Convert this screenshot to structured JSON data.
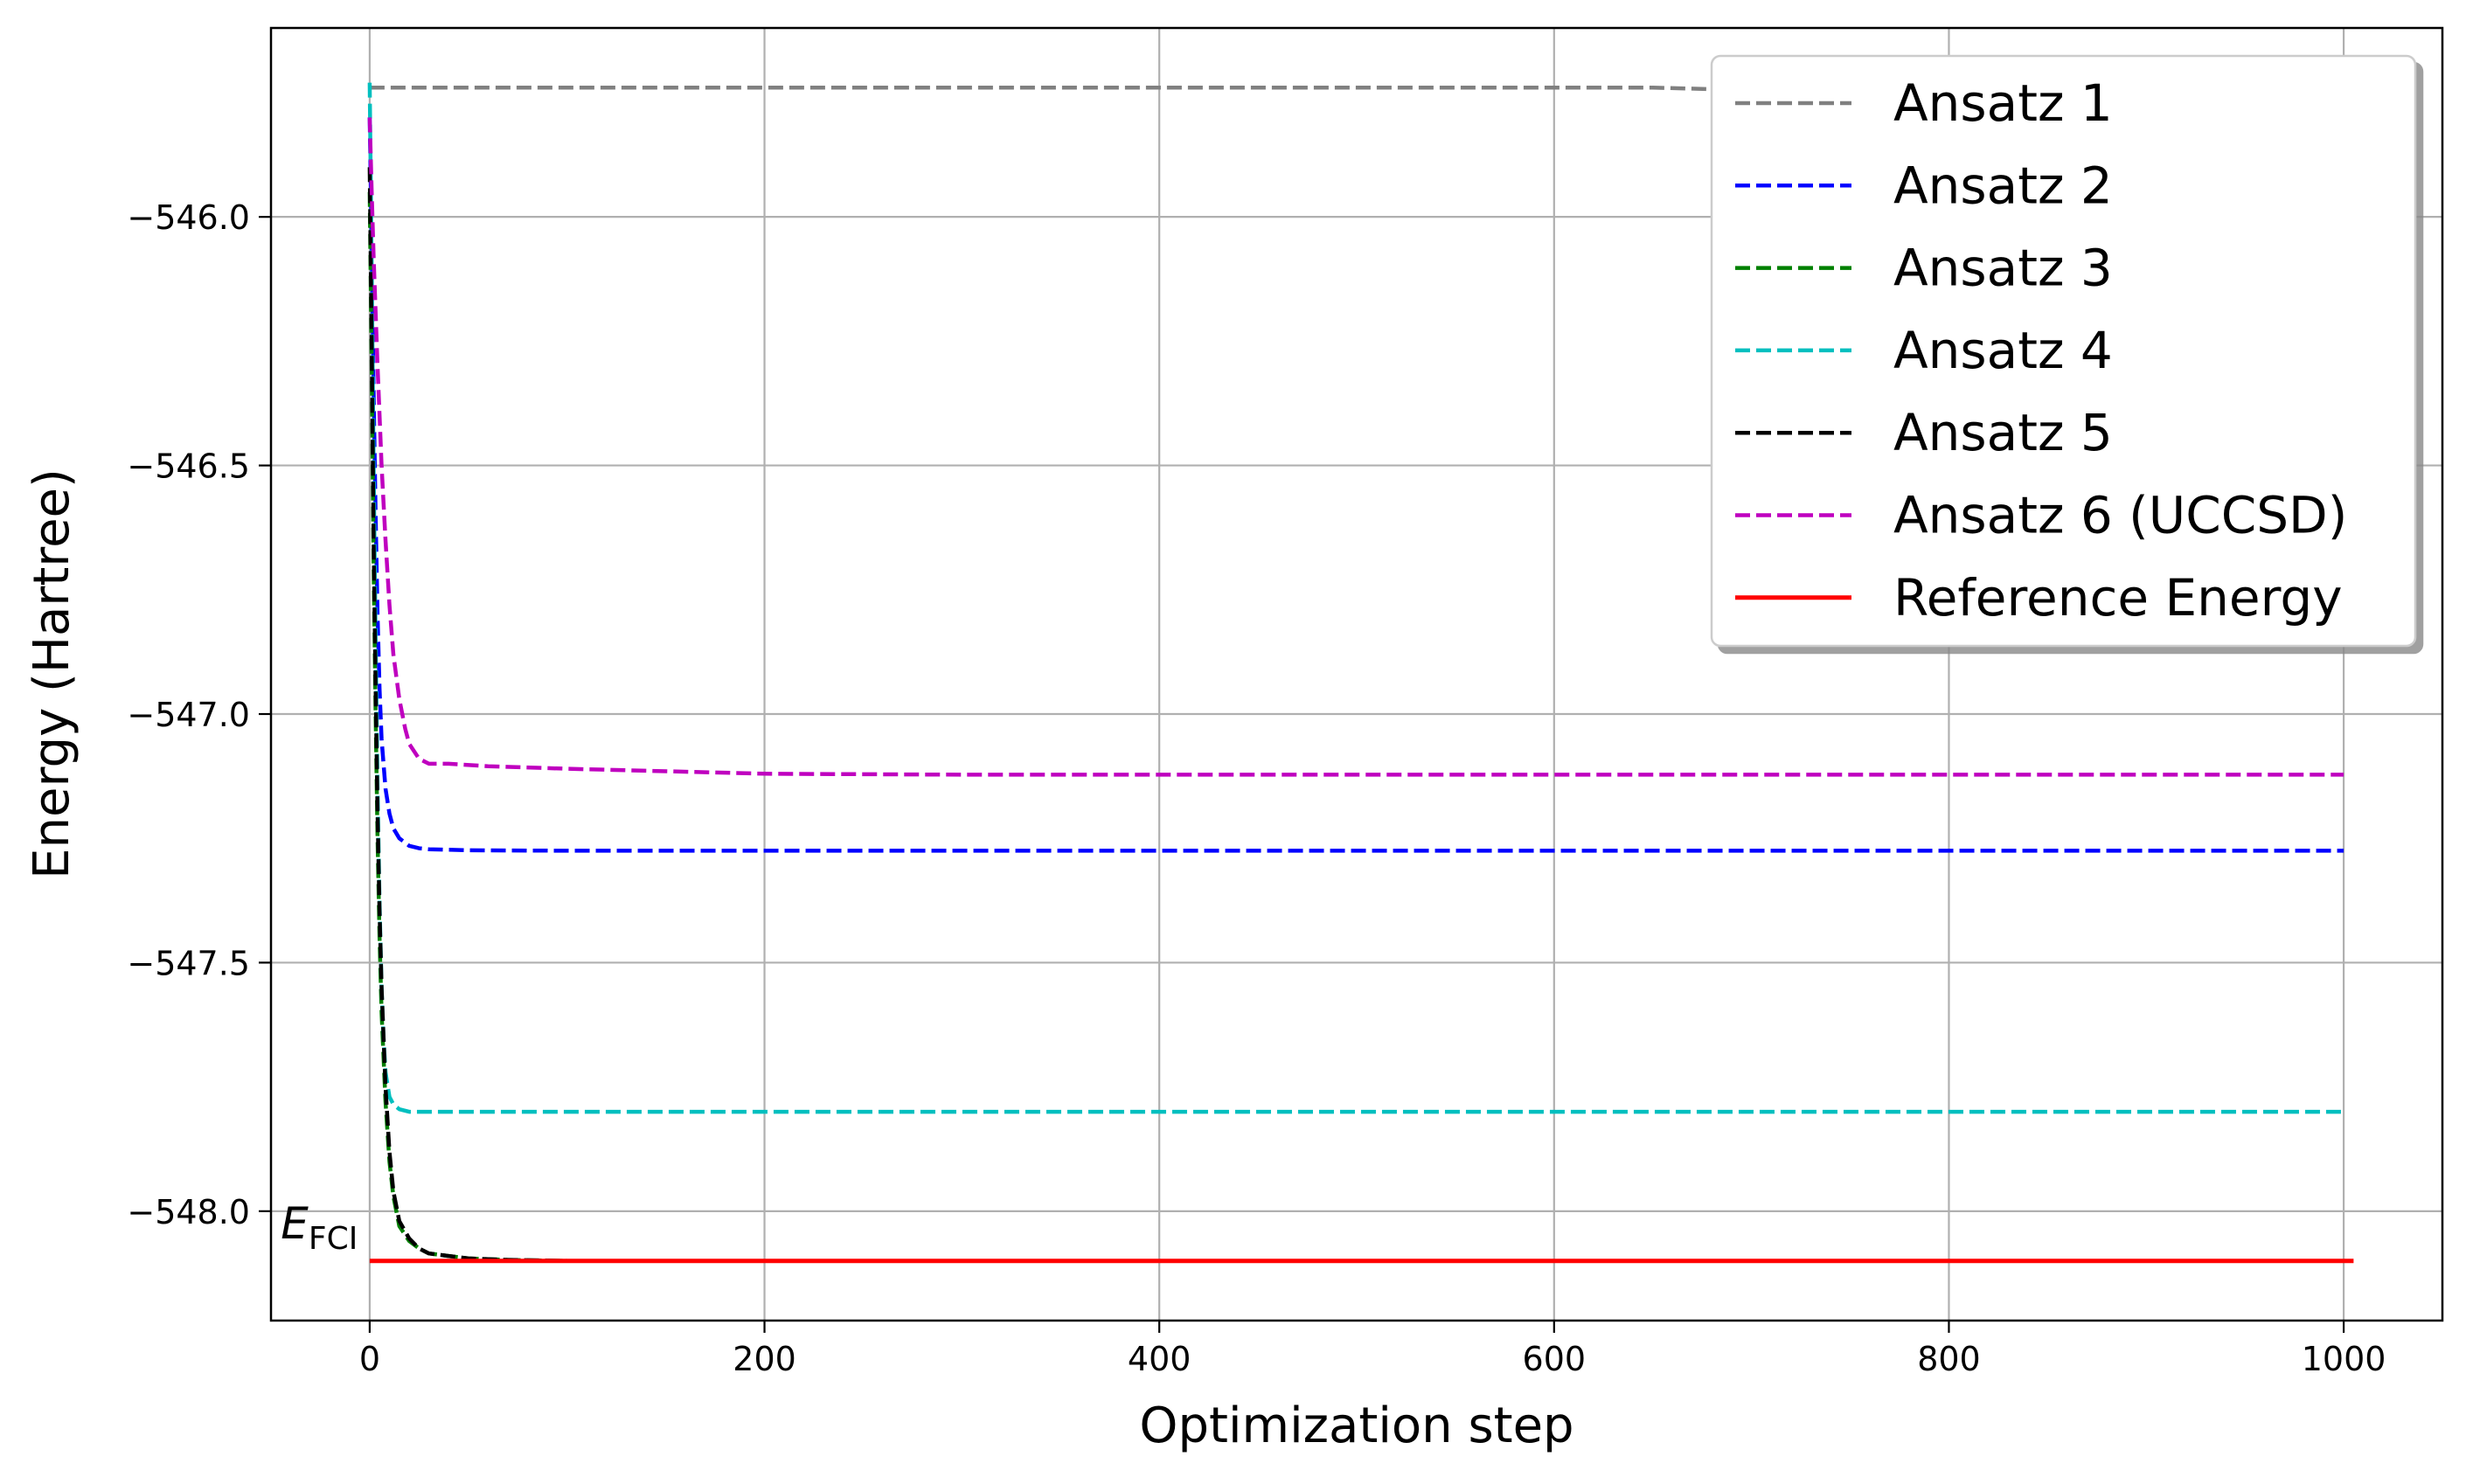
{
  "chart_data": {
    "type": "line",
    "title": "",
    "xlabel": "Optimization step",
    "ylabel": "Energy (Hartree)",
    "xlim": [
      -50,
      1050
    ],
    "ylim": [
      -548.22,
      -545.62
    ],
    "xticks": [
      0,
      200,
      400,
      600,
      800,
      1000
    ],
    "xtick_labels": [
      "0",
      "200",
      "400",
      "600",
      "800",
      "1000"
    ],
    "yticks": [
      -546.0,
      -546.5,
      -547.0,
      -547.5,
      -548.0
    ],
    "ytick_labels": [
      "−546.0",
      "−546.5",
      "−547.0",
      "−547.5",
      "−548.0"
    ],
    "grid": true,
    "legend_position": "upper right",
    "annotation": {
      "main": "E",
      "sub": "FCI",
      "x": -45,
      "y": -548.02
    },
    "series": [
      {
        "name": "Ansatz 1",
        "color": "#808080",
        "style": "dashed",
        "x": [
          0,
          2,
          5,
          100,
          400,
          650,
          700,
          1000
        ],
        "y": [
          -545.74,
          -545.74,
          -545.74,
          -545.74,
          -545.74,
          -545.74,
          -545.745,
          -545.745
        ]
      },
      {
        "name": "Ansatz 2",
        "color": "#0000ff",
        "style": "dashed",
        "x": [
          0,
          1,
          2,
          3,
          4,
          5,
          6,
          8,
          10,
          12,
          15,
          20,
          25,
          30,
          50,
          100,
          300,
          600,
          1000
        ],
        "y": [
          -545.8,
          -546.05,
          -546.35,
          -546.6,
          -546.8,
          -546.95,
          -547.05,
          -547.15,
          -547.2,
          -547.23,
          -547.25,
          -547.265,
          -547.27,
          -547.272,
          -547.274,
          -547.275,
          -547.275,
          -547.275,
          -547.275
        ]
      },
      {
        "name": "Ansatz 3",
        "color": "#008000",
        "style": "dashed",
        "x": [
          0,
          1,
          2,
          3,
          4,
          5,
          6,
          8,
          10,
          12,
          15,
          20,
          25,
          30,
          40,
          50,
          70,
          100,
          200,
          600,
          1000
        ],
        "y": [
          -545.95,
          -546.3,
          -546.7,
          -547.0,
          -547.25,
          -547.45,
          -547.6,
          -547.78,
          -547.9,
          -547.97,
          -548.03,
          -548.06,
          -548.075,
          -548.085,
          -548.09,
          -548.095,
          -548.098,
          -548.1,
          -548.1,
          -548.1,
          -548.1
        ]
      },
      {
        "name": "Ansatz 4",
        "color": "#00bfbf",
        "style": "dashed",
        "x": [
          0,
          1,
          2,
          3,
          4,
          5,
          6,
          7,
          8,
          10,
          12,
          15,
          20,
          30,
          100,
          500,
          1000
        ],
        "y": [
          -545.73,
          -546.1,
          -546.5,
          -546.85,
          -547.15,
          -547.38,
          -547.55,
          -547.65,
          -547.72,
          -547.77,
          -547.785,
          -547.795,
          -547.8,
          -547.8,
          -547.8,
          -547.8,
          -547.8
        ]
      },
      {
        "name": "Ansatz 5",
        "color": "#000000",
        "style": "dashed",
        "x": [
          0,
          1,
          2,
          3,
          4,
          5,
          6,
          8,
          10,
          12,
          15,
          20,
          25,
          30,
          40,
          50,
          70,
          100,
          200,
          600,
          1000
        ],
        "y": [
          -545.9,
          -546.25,
          -546.65,
          -546.95,
          -547.2,
          -547.4,
          -547.55,
          -547.75,
          -547.88,
          -547.96,
          -548.02,
          -548.055,
          -548.075,
          -548.085,
          -548.09,
          -548.095,
          -548.098,
          -548.1,
          -548.1,
          -548.1,
          -548.1
        ]
      },
      {
        "name": "Ansatz 6 (UCCSD)",
        "color": "#bf00bf",
        "style": "dashed",
        "x": [
          0,
          1,
          2,
          4,
          6,
          8,
          10,
          12,
          15,
          18,
          20,
          25,
          30,
          40,
          60,
          100,
          200,
          300,
          500,
          700,
          1000
        ],
        "y": [
          -545.8,
          -545.95,
          -546.08,
          -546.3,
          -546.5,
          -546.65,
          -546.78,
          -546.88,
          -546.97,
          -547.03,
          -547.06,
          -547.09,
          -547.1,
          -547.1,
          -547.105,
          -547.11,
          -547.12,
          -547.122,
          -547.122,
          -547.122,
          -547.122
        ]
      },
      {
        "name": "Reference Energy",
        "color": "#ff0000",
        "style": "solid",
        "x": [
          0,
          1005
        ],
        "y": [
          -548.1,
          -548.1
        ]
      }
    ]
  }
}
